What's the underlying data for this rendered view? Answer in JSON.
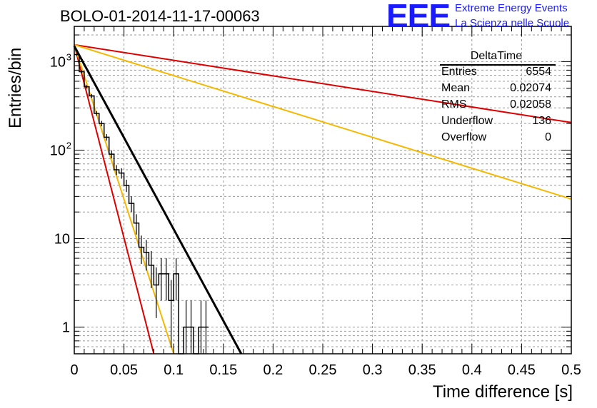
{
  "title": "BOLO-01-2014-11-17-00063",
  "logo": {
    "mark": "EEE",
    "line1": "Extreme Energy Events",
    "line2": "La Scienza nelle Scuole"
  },
  "stats": {
    "title": "DeltaTime",
    "rows": [
      {
        "key": "Entries",
        "value": "6554"
      },
      {
        "key": "Mean",
        "value": "0.02074"
      },
      {
        "key": "RMS",
        "value": "0.02058"
      },
      {
        "key": "Underflow",
        "value": "136"
      },
      {
        "key": "Overflow",
        "value": "0"
      }
    ]
  },
  "colors": {
    "histogram": "#000000",
    "fit": "#000000",
    "red": "#dd0000",
    "orange": "#f5b800",
    "grid": "#9a9a9a"
  },
  "chart_data": {
    "type": "line",
    "xlabel": "Time difference [s]",
    "ylabel": "Entries/bin",
    "xlim": [
      0,
      0.5
    ],
    "ylim": [
      0.5,
      2500
    ],
    "yscale": "log",
    "grid": true,
    "xticks": [
      "0",
      "0.05",
      "0.1",
      "0.15",
      "0.2",
      "0.25",
      "0.3",
      "0.35",
      "0.4",
      "0.45",
      "0.5"
    ],
    "yticks": [
      {
        "value": 1,
        "label": "1"
      },
      {
        "value": 10,
        "label": "10"
      },
      {
        "value": 100,
        "label": "10",
        "exp": "2"
      },
      {
        "value": 1000,
        "label": "10",
        "exp": "3"
      }
    ],
    "histogram": {
      "bin_width": 0.005,
      "bin_start": 0,
      "counts": [
        1200,
        770,
        520,
        410,
        260,
        200,
        140,
        90,
        60,
        55,
        40,
        25,
        15,
        8,
        7,
        5,
        3,
        4,
        4,
        2,
        4,
        0,
        1,
        1,
        0,
        1,
        1
      ]
    },
    "fit": {
      "x0": 0,
      "y0": 1500,
      "x1": 0.168,
      "y1": 0.5
    },
    "lines": [
      {
        "color": "red",
        "x0": 0,
        "y0": 1550,
        "x1": 0.5,
        "y1": 205
      },
      {
        "color": "orange",
        "x0": 0,
        "y0": 1550,
        "x1": 0.5,
        "y1": 28
      },
      {
        "color": "red",
        "x0": 0,
        "y0": 1550,
        "x1": 0.08,
        "y1": 0.5
      },
      {
        "color": "orange",
        "x0": 0,
        "y0": 1550,
        "x1": 0.1,
        "y1": 0.5
      }
    ]
  }
}
